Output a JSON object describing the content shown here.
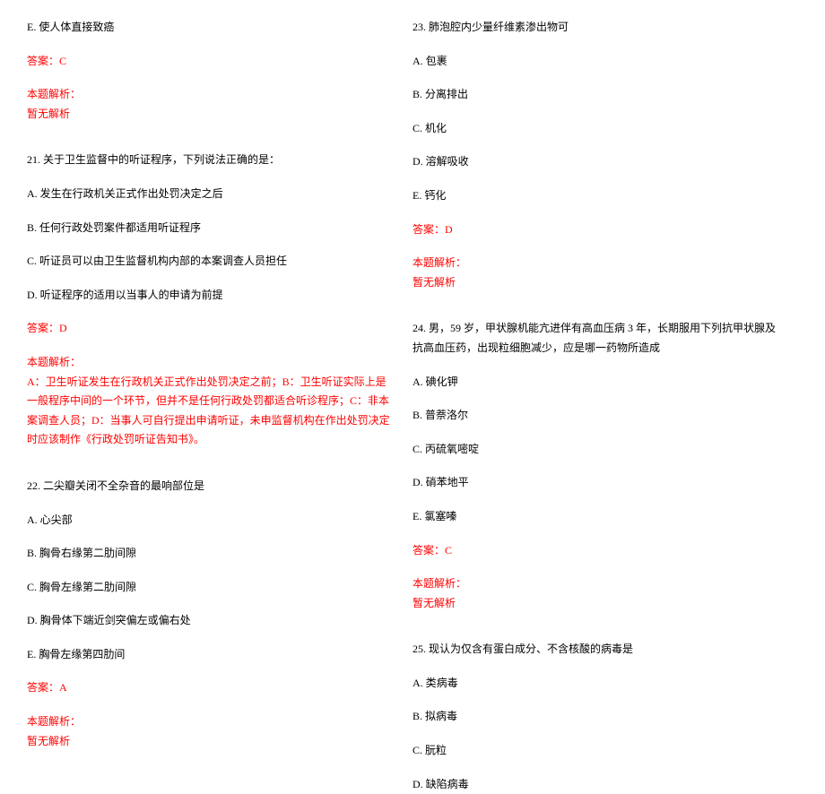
{
  "left": {
    "q20_optE": "E. 使人体直接致癌",
    "q20_answer": "答案：C",
    "q20_analysis_label": "本题解析：",
    "q20_analysis_none": "暂无解析",
    "q21_stem": "21. 关于卫生监督中的听证程序，下列说法正确的是：",
    "q21_optA": "A. 发生在行政机关正式作出处罚决定之后",
    "q21_optB": "B. 任何行政处罚案件都适用听证程序",
    "q21_optC": "C. 听证员可以由卫生监督机构内部的本案调查人员担任",
    "q21_optD": "D. 听证程序的适用以当事人的申请为前提",
    "q21_answer": "答案：D",
    "q21_analysis_label": "本题解析：",
    "q21_analysis_text": "A：卫生听证发生在行政机关正式作出处罚决定之前；B：卫生听证实际上是一般程序中间的一个环节，但并不是任何行政处罚都适合听诊程序；C：非本案调查人员；D：当事人可自行提出申请听证，未申监督机构在作出处罚决定时应该制作《行政处罚听证告知书》。",
    "q22_stem": "22. 二尖瓣关闭不全杂音的最响部位是",
    "q22_optA": "A. 心尖部",
    "q22_optB": "B. 胸骨右缘第二肋间隙",
    "q22_optC": "C. 胸骨左缘第二肋间隙",
    "q22_optD": "D. 胸骨体下端近剑突偏左或偏右处",
    "q22_optE": "E. 胸骨左缘第四肋间",
    "q22_answer": "答案：A",
    "q22_analysis_label": "本题解析：",
    "q22_analysis_none": "暂无解析"
  },
  "right": {
    "q23_stem": "23. 肺泡腔内少量纤维素渗出物可",
    "q23_optA": "A. 包裹",
    "q23_optB": "B. 分离排出",
    "q23_optC": "C. 机化",
    "q23_optD": "D. 溶解吸收",
    "q23_optE": "E. 钙化",
    "q23_answer": "答案：D",
    "q23_analysis_label": "本题解析：",
    "q23_analysis_none": "暂无解析",
    "q24_stem": "24. 男，59 岁，甲状腺机能亢进伴有高血压病 3 年，长期服用下列抗甲状腺及抗高血压药，出现粒细胞减少，应是哪一药物所造成",
    "q24_optA": "A. 碘化钾",
    "q24_optB": "B. 普萘洛尔",
    "q24_optC": "C. 丙硫氧嘧啶",
    "q24_optD": "D. 硝苯地平",
    "q24_optE": "E. 氯塞嗪",
    "q24_answer": "答案：C",
    "q24_analysis_label": "本题解析：",
    "q24_analysis_none": "暂无解析",
    "q25_stem": "25. 现认为仅含有蛋白成分、不含核酸的病毒是",
    "q25_optA": "A. 类病毒",
    "q25_optB": "B. 拟病毒",
    "q25_optC": "C. 朊粒",
    "q25_optD": "D. 缺陷病毒"
  }
}
